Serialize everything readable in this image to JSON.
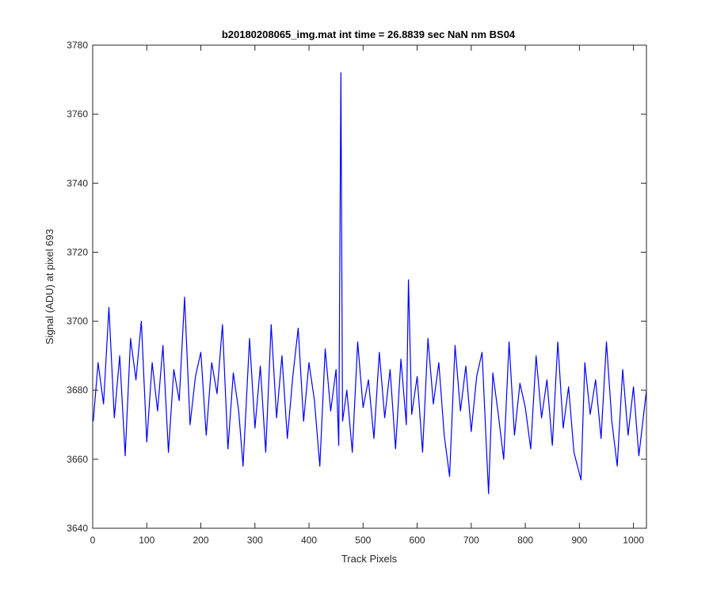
{
  "chart_data": {
    "type": "line",
    "title": "b20180208065_img.mat int time = 26.8839 sec  NaN nm BS04",
    "xlabel": "Track Pixels",
    "ylabel": "Signal (ADU) at pixel 693",
    "xlim": [
      0,
      1024
    ],
    "ylim": [
      3640,
      3780
    ],
    "xticks": [
      0,
      100,
      200,
      300,
      400,
      500,
      600,
      700,
      800,
      900,
      1000
    ],
    "yticks": [
      3640,
      3660,
      3680,
      3700,
      3720,
      3740,
      3760,
      3780
    ],
    "grid": false,
    "line_color": "#0000ff",
    "series": [
      {
        "x": [
          1,
          10,
          20,
          30,
          40,
          50,
          60,
          70,
          80,
          90,
          100,
          110,
          120,
          130,
          140,
          150,
          160,
          170,
          180,
          190,
          200,
          210,
          220,
          230,
          240,
          250,
          260,
          270,
          278,
          290,
          300,
          310,
          320,
          330,
          340,
          350,
          360,
          370,
          380,
          390,
          400,
          410,
          420,
          430,
          440,
          450,
          455,
          459,
          462,
          470,
          480,
          490,
          500,
          510,
          520,
          530,
          540,
          550,
          560,
          570,
          580,
          584,
          590,
          600,
          610,
          620,
          630,
          640,
          650,
          660,
          670,
          680,
          690,
          700,
          710,
          720,
          732,
          740,
          750,
          760,
          770,
          780,
          790,
          800,
          810,
          820,
          830,
          840,
          850,
          860,
          870,
          880,
          890,
          903,
          910,
          920,
          930,
          940,
          950,
          960,
          970,
          980,
          990,
          1000,
          1010,
          1024
        ],
        "values": [
          3671,
          3688,
          3676,
          3704,
          3672,
          3690,
          3661,
          3695,
          3683,
          3700,
          3665,
          3688,
          3674,
          3693,
          3662,
          3686,
          3677,
          3707,
          3670,
          3684,
          3691,
          3667,
          3688,
          3679,
          3699,
          3663,
          3685,
          3674,
          3658,
          3695,
          3669,
          3687,
          3662,
          3699,
          3672,
          3690,
          3666,
          3684,
          3698,
          3671,
          3688,
          3677,
          3658,
          3692,
          3674,
          3686,
          3664,
          3772,
          3671,
          3680,
          3662,
          3694,
          3675,
          3683,
          3666,
          3691,
          3672,
          3686,
          3663,
          3689,
          3670,
          3712,
          3673,
          3684,
          3662,
          3695,
          3676,
          3688,
          3667,
          3655,
          3693,
          3674,
          3687,
          3668,
          3684,
          3691,
          3650,
          3685,
          3673,
          3660,
          3694,
          3667,
          3682,
          3675,
          3663,
          3690,
          3672,
          3683,
          3664,
          3694,
          3669,
          3681,
          3662,
          3654,
          3688,
          3673,
          3683,
          3666,
          3694,
          3671,
          3658,
          3686,
          3667,
          3681,
          3661,
          3680
        ]
      }
    ]
  }
}
